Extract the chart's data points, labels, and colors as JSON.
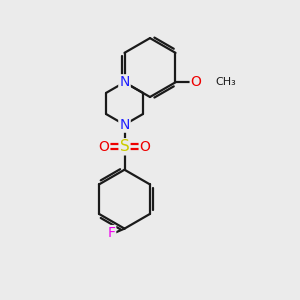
{
  "background_color": "#ebebeb",
  "bond_color": "#1a1a1a",
  "bond_width": 1.6,
  "atom_colors": {
    "N": "#2020ff",
    "O": "#ee0000",
    "S": "#cccc00",
    "F": "#ee00ee",
    "C": "#1a1a1a"
  },
  "figsize": [
    3.0,
    3.0
  ],
  "dpi": 100
}
